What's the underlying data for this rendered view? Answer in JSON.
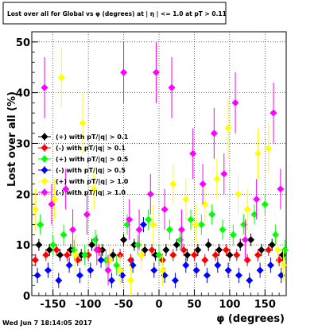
{
  "title": "Lost over all for Global vs φ (degrees) at | η | <= 1.0 at pT > 0.11",
  "timestamp": "Wed Jun  7 18:14:05 2017",
  "chart_data": {
    "type": "scatter",
    "xlabel": "φ (degrees)",
    "ylabel": "Lost over all (%)",
    "xlim": [
      -180,
      180
    ],
    "ylim": [
      0,
      52
    ],
    "xticks": [
      -150,
      -100,
      -50,
      0,
      50,
      100,
      150
    ],
    "yticks": [
      0,
      10,
      20,
      30,
      40,
      50
    ],
    "grid": true,
    "legend_position": "center-left",
    "series": [
      {
        "name": "(+) with pT/|q| > 0.1",
        "color": "#000000",
        "x": [
          -170,
          -155,
          -140,
          -125,
          -110,
          -95,
          -80,
          -65,
          -50,
          -35,
          -20,
          -5,
          10,
          25,
          40,
          55,
          70,
          85,
          100,
          115,
          130,
          145,
          160,
          175
        ],
        "y": [
          10,
          9,
          8,
          9,
          8,
          10,
          9,
          8,
          11,
          10,
          9,
          8,
          9,
          10,
          8,
          9,
          10,
          9,
          8,
          10,
          11,
          9,
          10,
          8
        ],
        "err": [
          1.2,
          1.2,
          1.2,
          1.2,
          1.2,
          1.2,
          1.2,
          1.2,
          1.2,
          1.2,
          1.2,
          1.2,
          1.2,
          1.2,
          1.2,
          1.2,
          1.2,
          1.2,
          1.2,
          1.2,
          1.2,
          1.2,
          1.2,
          1.2
        ]
      },
      {
        "name": "(-) with pT/|q| > 0.1",
        "color": "#ff0000",
        "x": [
          -175,
          -160,
          -145,
          -130,
          -115,
          -100,
          -85,
          -70,
          -55,
          -40,
          -25,
          -10,
          5,
          20,
          35,
          50,
          65,
          80,
          95,
          110,
          125,
          140,
          155,
          170
        ],
        "y": [
          7,
          8,
          9,
          8,
          7,
          8,
          9,
          7,
          8,
          7,
          8,
          9,
          7,
          8,
          9,
          8,
          7,
          8,
          9,
          8,
          7,
          8,
          9,
          7
        ],
        "err": [
          1.2,
          1.2,
          1.2,
          1.2,
          1.2,
          1.2,
          1.2,
          1.2,
          1.2,
          1.2,
          1.2,
          1.2,
          1.2,
          1.2,
          1.2,
          1.2,
          1.2,
          1.2,
          1.2,
          1.2,
          1.2,
          1.2,
          1.2,
          1.2
        ]
      },
      {
        "name": "(+) with pT/|q| > 0.5",
        "color": "#00ff00",
        "x": [
          -168,
          -150,
          -135,
          -120,
          -105,
          -90,
          -75,
          -60,
          -45,
          -30,
          -15,
          0,
          15,
          30,
          45,
          60,
          75,
          90,
          105,
          120,
          135,
          150,
          165,
          178
        ],
        "y": [
          14,
          10,
          12,
          9,
          8,
          11,
          7,
          6,
          14,
          10,
          15,
          8,
          13,
          11,
          15,
          14,
          16,
          13,
          12,
          14,
          16,
          18,
          12,
          9
        ],
        "err": [
          2,
          2,
          2,
          2,
          2,
          2,
          2,
          2,
          2,
          2,
          2,
          2,
          2,
          2,
          2,
          2,
          2,
          2,
          2,
          2,
          2,
          2,
          2,
          2
        ]
      },
      {
        "name": "(-) with pT/|q| > 0.5",
        "color": "#0000ff",
        "x": [
          -172,
          -157,
          -142,
          -127,
          -112,
          -97,
          -82,
          -67,
          -52,
          -37,
          -22,
          -7,
          8,
          23,
          38,
          53,
          68,
          83,
          98,
          113,
          128,
          143,
          158,
          173
        ],
        "y": [
          4,
          5,
          3,
          6,
          4,
          5,
          7,
          3,
          4,
          6,
          14,
          5,
          4,
          3,
          6,
          5,
          4,
          6,
          5,
          4,
          3,
          5,
          6,
          4
        ],
        "err": [
          1.5,
          1.5,
          1.5,
          1.5,
          1.5,
          1.5,
          1.5,
          1.5,
          1.5,
          1.5,
          1.5,
          1.5,
          1.5,
          1.5,
          1.5,
          1.5,
          1.5,
          1.5,
          1.5,
          1.5,
          1.5,
          1.5,
          1.5,
          1.5
        ]
      },
      {
        "name": "(+) with pT/|q| > 1.0",
        "color": "#ffff00",
        "x": [
          -175,
          -148,
          -138,
          -118,
          -108,
          -92,
          -70,
          -55,
          -40,
          -25,
          -8,
          5,
          20,
          38,
          52,
          65,
          82,
          98,
          112,
          125,
          140,
          155,
          168,
          176
        ],
        "y": [
          17,
          19,
          43,
          8,
          34,
          21,
          7,
          5,
          3,
          8,
          14,
          5,
          22,
          19,
          14,
          18,
          23,
          33,
          20,
          17,
          28,
          29,
          9,
          6
        ],
        "err": [
          4,
          4,
          6,
          4,
          6,
          4,
          3,
          3,
          3,
          3,
          4,
          3,
          4,
          4,
          4,
          4,
          4,
          6,
          4,
          4,
          5,
          5,
          3,
          3
        ]
      },
      {
        "name": "(-) with pT/|q| > 1.0",
        "color": "#ff00ff",
        "x": [
          -162,
          -152,
          -132,
          -122,
          -102,
          -88,
          -72,
          -50,
          -42,
          -28,
          -12,
          -4,
          8,
          18,
          32,
          48,
          62,
          78,
          92,
          108,
          122,
          138,
          162,
          172
        ],
        "y": [
          41,
          18,
          21,
          13,
          16,
          9,
          5,
          44,
          15,
          13,
          20,
          44,
          17,
          41,
          13,
          28,
          22,
          32,
          24,
          38,
          11,
          19,
          36,
          21
        ],
        "err": [
          6,
          4,
          4,
          4,
          4,
          3,
          3,
          6,
          4,
          4,
          4,
          6,
          4,
          6,
          4,
          5,
          4,
          5,
          4,
          6,
          4,
          4,
          6,
          4
        ]
      }
    ]
  }
}
